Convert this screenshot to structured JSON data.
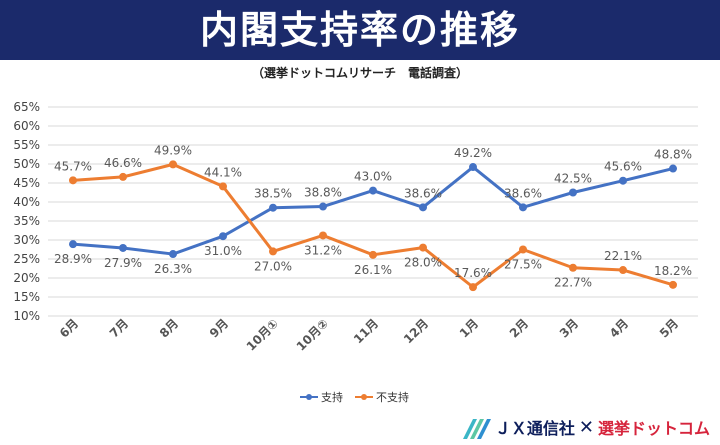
{
  "header": {
    "title": "内閣支持率の推移",
    "subtitle": "（選挙ドットコムリサーチ　電話調査）"
  },
  "brand": {
    "jx": "ＪＸ通信社",
    "x": "✕",
    "senkyo": "選挙ドットコム"
  },
  "colors": {
    "banner": "#1b2a6b",
    "support": "#4472c4",
    "nonsupport": "#ed7d31"
  },
  "chart_data": {
    "type": "line",
    "categories": [
      "6月",
      "7月",
      "8月",
      "9月",
      "10月①",
      "10月②",
      "11月",
      "12月",
      "1月",
      "2月",
      "3月",
      "4月",
      "5月"
    ],
    "series": [
      {
        "name": "支持",
        "values": [
          28.9,
          27.9,
          26.3,
          31.0,
          38.5,
          38.8,
          43.0,
          38.6,
          49.2,
          38.6,
          42.5,
          45.6,
          48.8
        ]
      },
      {
        "name": "不支持",
        "values": [
          45.7,
          46.6,
          49.9,
          44.1,
          27.0,
          31.2,
          26.1,
          28.0,
          17.6,
          27.5,
          22.7,
          22.1,
          18.2
        ]
      }
    ],
    "ylim": [
      10,
      65
    ],
    "yticks": [
      "10%",
      "15%",
      "20%",
      "25%",
      "30%",
      "35%",
      "40%",
      "45%",
      "50%",
      "55%",
      "60%",
      "65%"
    ],
    "grid": true,
    "legend": "bottom"
  }
}
